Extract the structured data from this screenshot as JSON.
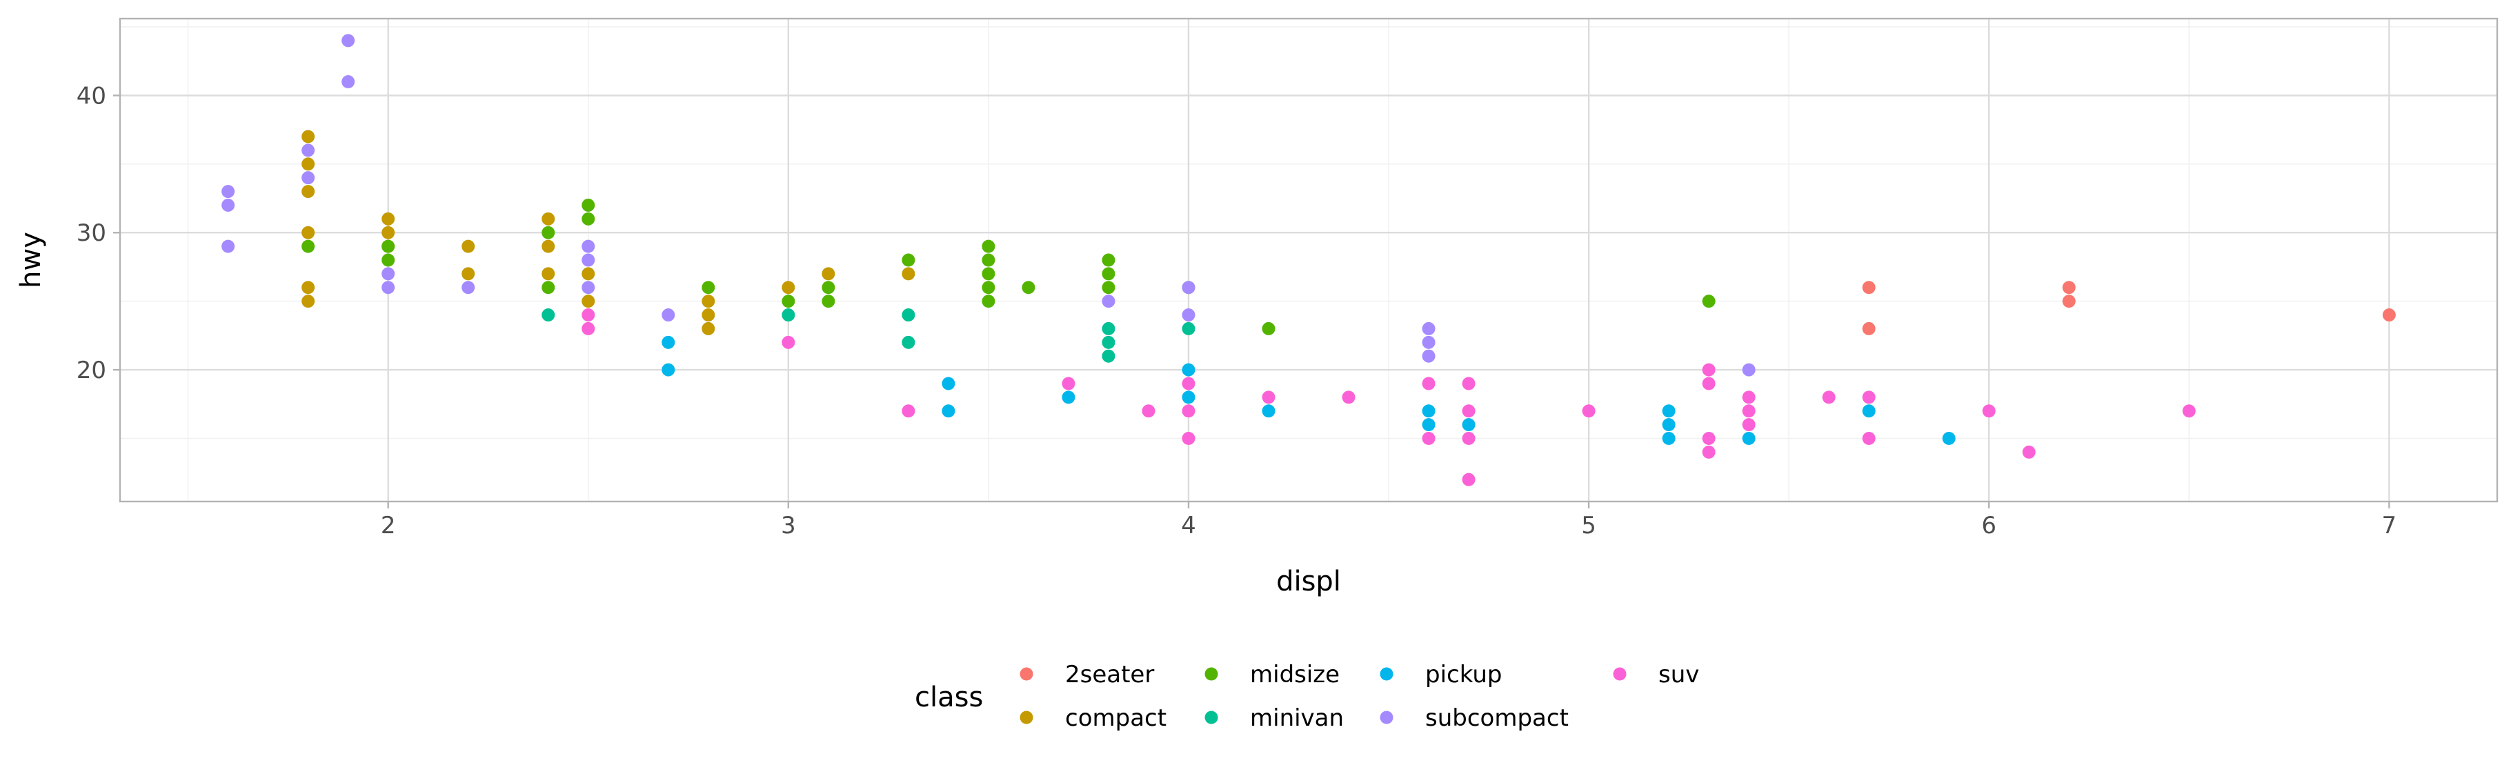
{
  "chart_data": {
    "type": "scatter",
    "xlabel": "displ",
    "ylabel": "hwy",
    "xlim": [
      1.33,
      7.27
    ],
    "ylim": [
      10.4,
      45.6
    ],
    "x_ticks": [
      2,
      3,
      4,
      5,
      6,
      7
    ],
    "y_ticks": [
      20,
      30,
      40
    ],
    "grid": true,
    "legend": {
      "title": "class",
      "placement": "bottom",
      "entries": [
        {
          "label": "2seater",
          "color": "#F8766D"
        },
        {
          "label": "compact",
          "color": "#C49A00"
        },
        {
          "label": "midsize",
          "color": "#53B400"
        },
        {
          "label": "minivan",
          "color": "#00C094"
        },
        {
          "label": "pickup",
          "color": "#00B6EB"
        },
        {
          "label": "subcompact",
          "color": "#A58AFF"
        },
        {
          "label": "suv",
          "color": "#FB61D7"
        }
      ]
    },
    "series": [
      {
        "name": "2seater",
        "color": "#F8766D",
        "points": [
          [
            5.7,
            26
          ],
          [
            5.7,
            23
          ],
          [
            6.2,
            26
          ],
          [
            6.2,
            25
          ],
          [
            7.0,
            24
          ]
        ]
      },
      {
        "name": "compact",
        "color": "#C49A00",
        "points": [
          [
            1.8,
            37
          ],
          [
            1.8,
            35
          ],
          [
            1.8,
            33
          ],
          [
            1.8,
            30
          ],
          [
            1.8,
            26
          ],
          [
            1.8,
            25
          ],
          [
            2.0,
            31
          ],
          [
            2.0,
            30
          ],
          [
            2.0,
            29
          ],
          [
            2.2,
            29
          ],
          [
            2.2,
            27
          ],
          [
            2.4,
            31
          ],
          [
            2.4,
            29
          ],
          [
            2.4,
            27
          ],
          [
            2.5,
            27
          ],
          [
            2.5,
            25
          ],
          [
            2.8,
            25
          ],
          [
            2.8,
            24
          ],
          [
            2.8,
            23
          ],
          [
            3.0,
            26
          ],
          [
            3.1,
            27
          ],
          [
            3.3,
            27
          ]
        ]
      },
      {
        "name": "midsize",
        "color": "#53B400",
        "points": [
          [
            1.8,
            29
          ],
          [
            2.0,
            29
          ],
          [
            2.0,
            28
          ],
          [
            2.4,
            30
          ],
          [
            2.4,
            26
          ],
          [
            2.5,
            32
          ],
          [
            2.5,
            31
          ],
          [
            2.8,
            26
          ],
          [
            3.0,
            25
          ],
          [
            3.1,
            26
          ],
          [
            3.1,
            25
          ],
          [
            3.3,
            28
          ],
          [
            3.5,
            29
          ],
          [
            3.5,
            28
          ],
          [
            3.5,
            27
          ],
          [
            3.5,
            26
          ],
          [
            3.5,
            25
          ],
          [
            3.6,
            26
          ],
          [
            3.8,
            28
          ],
          [
            3.8,
            27
          ],
          [
            3.8,
            26
          ],
          [
            4.0,
            26
          ],
          [
            4.2,
            23
          ],
          [
            5.3,
            25
          ]
        ]
      },
      {
        "name": "minivan",
        "color": "#00C094",
        "points": [
          [
            2.4,
            24
          ],
          [
            3.0,
            24
          ],
          [
            3.3,
            24
          ],
          [
            3.3,
            22
          ],
          [
            3.8,
            23
          ],
          [
            3.8,
            22
          ],
          [
            3.8,
            21
          ],
          [
            4.0,
            23
          ]
        ]
      },
      {
        "name": "pickup",
        "color": "#00B6EB",
        "points": [
          [
            2.7,
            22
          ],
          [
            2.7,
            20
          ],
          [
            3.4,
            19
          ],
          [
            3.4,
            17
          ],
          [
            3.7,
            18
          ],
          [
            4.0,
            20
          ],
          [
            4.0,
            18
          ],
          [
            4.2,
            17
          ],
          [
            4.6,
            17
          ],
          [
            4.6,
            16
          ],
          [
            4.7,
            16
          ],
          [
            5.2,
            17
          ],
          [
            5.2,
            16
          ],
          [
            5.2,
            15
          ],
          [
            5.4,
            15
          ],
          [
            5.7,
            17
          ],
          [
            5.9,
            15
          ]
        ]
      },
      {
        "name": "subcompact",
        "color": "#A58AFF",
        "points": [
          [
            1.6,
            33
          ],
          [
            1.6,
            32
          ],
          [
            1.6,
            29
          ],
          [
            1.8,
            36
          ],
          [
            1.8,
            34
          ],
          [
            1.9,
            44
          ],
          [
            1.9,
            41
          ],
          [
            2.0,
            27
          ],
          [
            2.0,
            26
          ],
          [
            2.2,
            26
          ],
          [
            2.5,
            29
          ],
          [
            2.5,
            28
          ],
          [
            2.5,
            26
          ],
          [
            2.7,
            24
          ],
          [
            3.8,
            25
          ],
          [
            4.0,
            26
          ],
          [
            4.0,
            24
          ],
          [
            4.6,
            23
          ],
          [
            4.6,
            22
          ],
          [
            4.6,
            21
          ],
          [
            5.4,
            20
          ]
        ]
      },
      {
        "name": "suv",
        "color": "#FB61D7",
        "points": [
          [
            2.5,
            24
          ],
          [
            2.5,
            23
          ],
          [
            3.0,
            22
          ],
          [
            3.3,
            17
          ],
          [
            3.7,
            19
          ],
          [
            3.9,
            17
          ],
          [
            4.0,
            19
          ],
          [
            4.0,
            17
          ],
          [
            4.0,
            15
          ],
          [
            4.2,
            18
          ],
          [
            4.4,
            18
          ],
          [
            4.6,
            19
          ],
          [
            4.6,
            15
          ],
          [
            4.7,
            19
          ],
          [
            4.7,
            17
          ],
          [
            4.7,
            15
          ],
          [
            4.7,
            12
          ],
          [
            5.0,
            17
          ],
          [
            5.3,
            20
          ],
          [
            5.3,
            19
          ],
          [
            5.3,
            15
          ],
          [
            5.3,
            14
          ],
          [
            5.4,
            18
          ],
          [
            5.4,
            17
          ],
          [
            5.4,
            16
          ],
          [
            5.6,
            18
          ],
          [
            5.7,
            18
          ],
          [
            5.7,
            15
          ],
          [
            6.0,
            17
          ],
          [
            6.1,
            14
          ],
          [
            6.5,
            17
          ]
        ]
      }
    ]
  }
}
